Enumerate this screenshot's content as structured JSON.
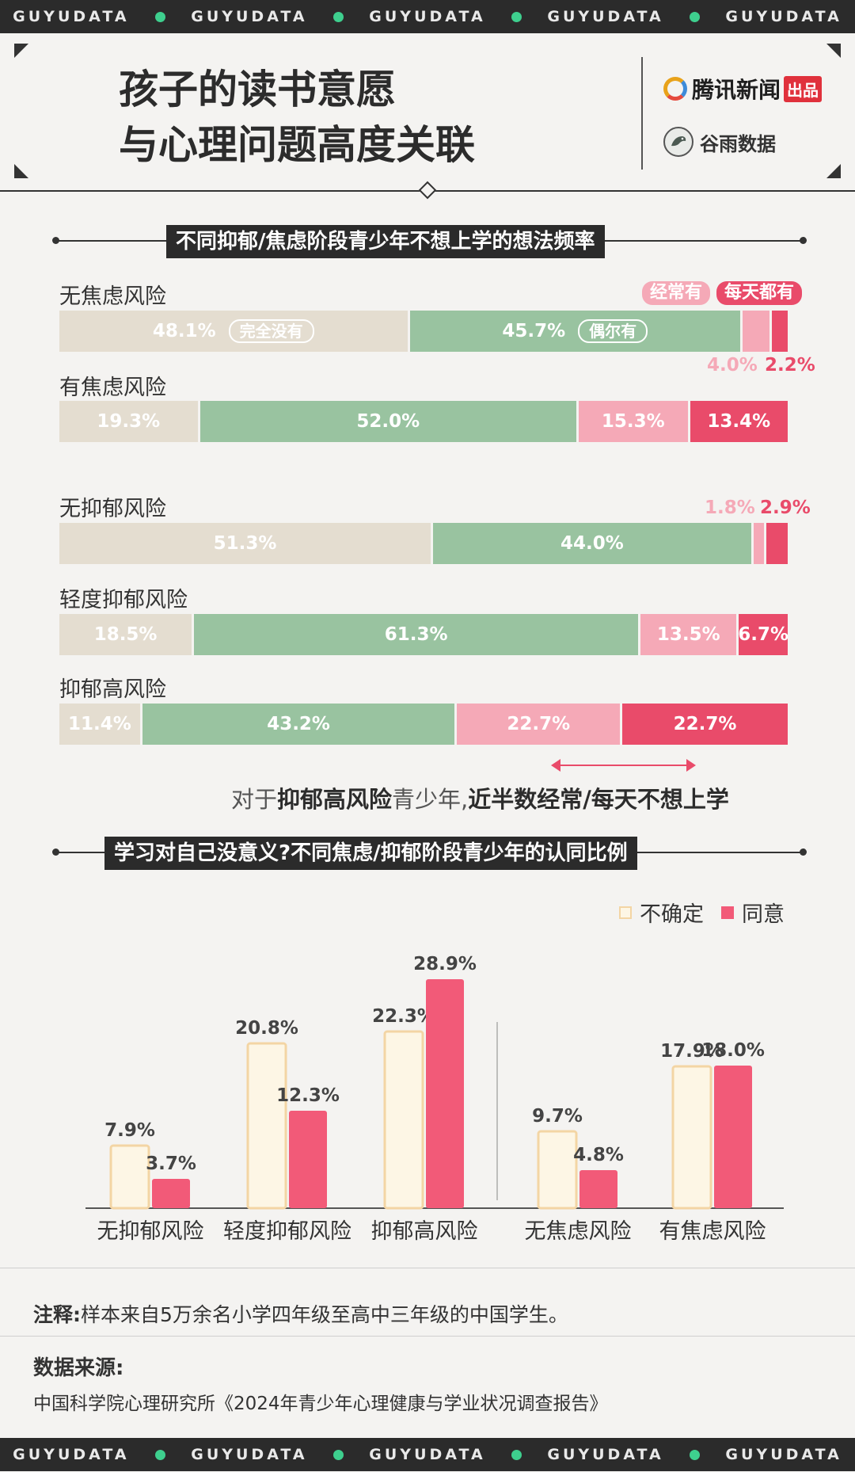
{
  "brand_band": {
    "text": "GUYUDATA"
  },
  "header": {
    "title_line1": "孩子的读书意愿",
    "title_line2": "与心理问题高度关联",
    "logo_tencent": {
      "name": "腾讯新闻",
      "tag": "出品"
    },
    "logo_guyu": {
      "name": "谷雨数据"
    }
  },
  "section1": {
    "title": "不同抑郁/焦虑阶段青少年不想上学的想法频率",
    "legend": {
      "none": "完全没有",
      "sometimes": "偶尔有",
      "often": "经常有",
      "daily": "每天都有"
    },
    "note_plain1": "对于",
    "note_bold1": "抑郁高风险",
    "note_plain2": "青少年,",
    "note_bold2": "近半数经常/每天不想上学"
  },
  "section2": {
    "title": "学习对自己没意义?不同焦虑/抑郁阶段青少年的认同比例",
    "legend": {
      "unsure": "不确定",
      "agree": "同意"
    }
  },
  "footer": {
    "note_label": "注释:",
    "note_text": "样本来自5万余名小学四年级至高中三年级的中国学生。",
    "source_title": "数据来源:",
    "source_text": "中国科学院心理研究所《2024年青少年心理健康与学业状况调查报告》"
  },
  "colors": {
    "none": "#e4ddd0",
    "sometimes": "#99c3a0",
    "often": "#f5a9b7",
    "daily": "#e94b6a",
    "unsure": "#fdf6e5",
    "unsure_border": "#f3d5a4",
    "agree": "#f25a78"
  },
  "chart_data": [
    {
      "type": "bar",
      "stacked": true,
      "orientation": "horizontal",
      "title": "不同抑郁/焦虑阶段青少年不想上学的想法频率",
      "categories": [
        "无焦虑风险",
        "有焦虑风险",
        "无抑郁风险",
        "轻度抑郁风险",
        "抑郁高风险"
      ],
      "labels": [
        [
          "48.1%",
          "45.7%",
          "4.0%",
          "2.2%"
        ],
        [
          "19.3%",
          "52.0%",
          "15.3%",
          "13.4%"
        ],
        [
          "51.3%",
          "44.0%",
          "1.8%",
          "2.9%"
        ],
        [
          "18.5%",
          "61.3%",
          "13.5%",
          "6.7%"
        ],
        [
          "11.4%",
          "43.2%",
          "22.7%",
          "22.7%"
        ]
      ],
      "series": [
        {
          "name": "完全没有",
          "values": [
            48.1,
            19.3,
            51.3,
            18.5,
            11.4
          ]
        },
        {
          "name": "偶尔有",
          "values": [
            45.7,
            52.0,
            44.0,
            61.3,
            43.2
          ]
        },
        {
          "name": "经常有",
          "values": [
            4.0,
            15.3,
            1.8,
            13.5,
            22.7
          ]
        },
        {
          "name": "每天都有",
          "values": [
            2.2,
            13.4,
            2.9,
            6.7,
            22.7
          ]
        }
      ]
    },
    {
      "type": "bar",
      "title": "学习对自己没意义?不同焦虑/抑郁阶段青少年的认同比例",
      "categories": [
        "无抑郁风险",
        "轻度抑郁风险",
        "抑郁高风险",
        "无焦虑风险",
        "有焦虑风险"
      ],
      "series": [
        {
          "name": "不确定",
          "values": [
            7.9,
            20.8,
            22.3,
            9.7,
            17.9
          ],
          "labels": [
            "7.9%",
            "20.8%",
            "22.3%",
            "9.7%",
            "17.9%"
          ]
        },
        {
          "name": "同意",
          "values": [
            3.7,
            12.3,
            28.9,
            4.8,
            18.0
          ],
          "labels": [
            "3.7%",
            "12.3%",
            "28.9%",
            "4.8%",
            "18.0%"
          ]
        }
      ]
    }
  ]
}
